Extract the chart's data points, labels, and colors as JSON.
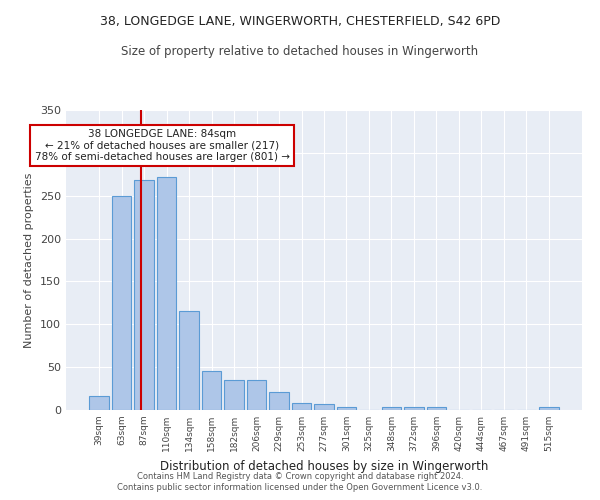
{
  "title1": "38, LONGEDGE LANE, WINGERWORTH, CHESTERFIELD, S42 6PD",
  "title2": "Size of property relative to detached houses in Wingerworth",
  "xlabel": "Distribution of detached houses by size in Wingerworth",
  "ylabel": "Number of detached properties",
  "bar_labels": [
    "39sqm",
    "63sqm",
    "87sqm",
    "110sqm",
    "134sqm",
    "158sqm",
    "182sqm",
    "206sqm",
    "229sqm",
    "253sqm",
    "277sqm",
    "301sqm",
    "325sqm",
    "348sqm",
    "372sqm",
    "396sqm",
    "420sqm",
    "444sqm",
    "467sqm",
    "491sqm",
    "515sqm"
  ],
  "bar_values": [
    16,
    250,
    268,
    272,
    115,
    45,
    35,
    35,
    21,
    8,
    7,
    3,
    0,
    3,
    4,
    4,
    0,
    0,
    0,
    0,
    3
  ],
  "bar_color": "#aec6e8",
  "bar_edge_color": "#5b9bd5",
  "background_color": "#e8edf5",
  "grid_color": "#ffffff",
  "annotation_text": "38 LONGEDGE LANE: 84sqm\n← 21% of detached houses are smaller (217)\n78% of semi-detached houses are larger (801) →",
  "annotation_box_edge": "#cc0000",
  "vline_color": "#cc0000",
  "ylim": [
    0,
    350
  ],
  "yticks": [
    0,
    50,
    100,
    150,
    200,
    250,
    300,
    350
  ],
  "footer1": "Contains HM Land Registry data © Crown copyright and database right 2024.",
  "footer2": "Contains public sector information licensed under the Open Government Licence v3.0."
}
